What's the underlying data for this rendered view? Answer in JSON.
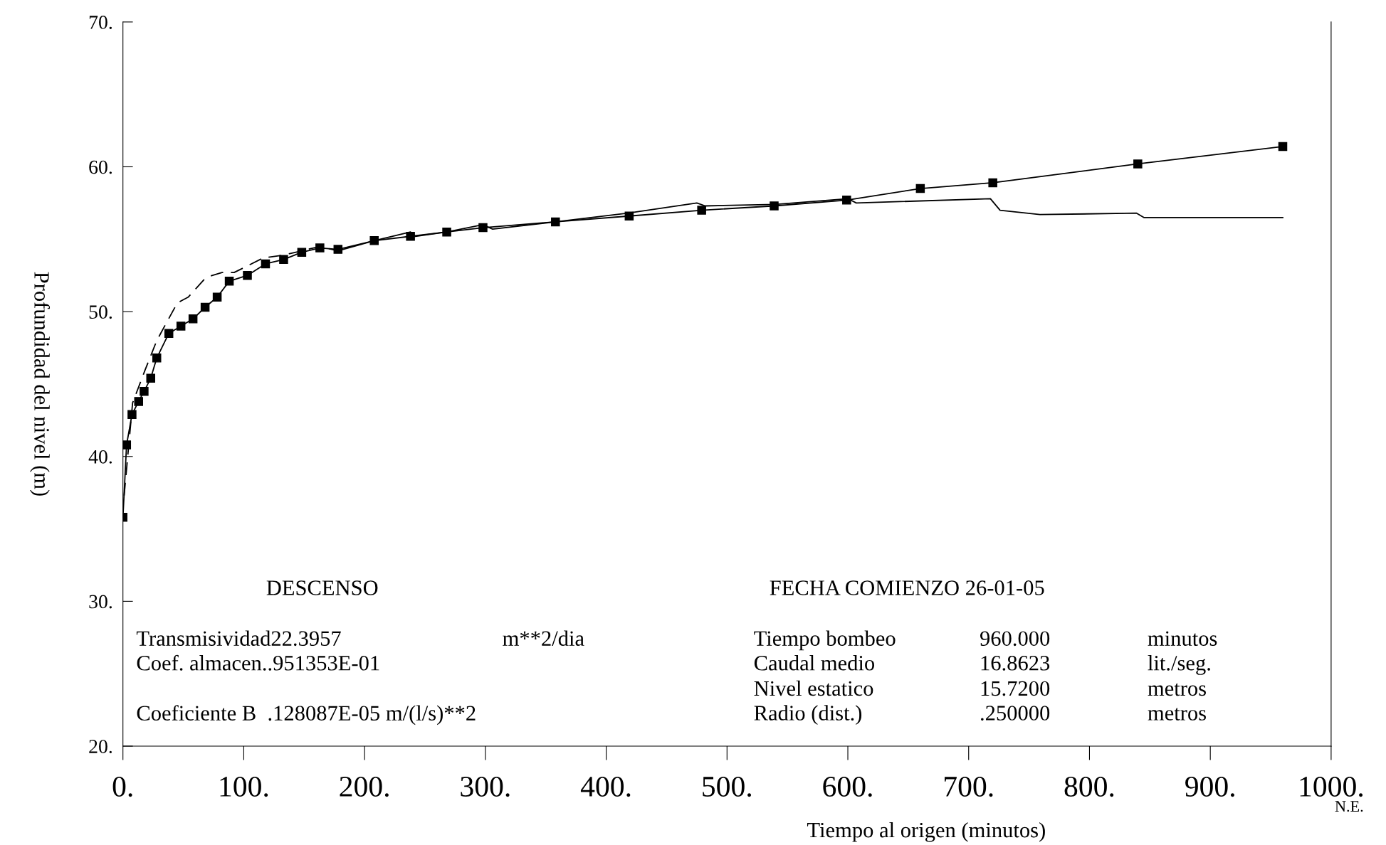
{
  "chart_data": {
    "type": "line",
    "xlabel": "Tiempo al origen (minutos)",
    "ylabel": "Profundidad del nivel (m)",
    "xlim": [
      0,
      1000
    ],
    "ylim": [
      20,
      70
    ],
    "xticks": [
      {
        "value": 0,
        "label": "0."
      },
      {
        "value": 100,
        "label": "100."
      },
      {
        "value": 200,
        "label": "200."
      },
      {
        "value": 300,
        "label": "300."
      },
      {
        "value": 400,
        "label": "400."
      },
      {
        "value": 500,
        "label": "500."
      },
      {
        "value": 600,
        "label": "600."
      },
      {
        "value": 700,
        "label": "700."
      },
      {
        "value": 800,
        "label": "800."
      },
      {
        "value": 900,
        "label": "900."
      },
      {
        "value": 1000,
        "label": "1000."
      }
    ],
    "yticks": [
      {
        "value": 20,
        "label": "20."
      },
      {
        "value": 30,
        "label": "30."
      },
      {
        "value": 40,
        "label": "40."
      },
      {
        "value": 50,
        "label": "50."
      },
      {
        "value": 60,
        "label": "60."
      },
      {
        "value": 70,
        "label": "70."
      }
    ],
    "grid": false,
    "legend": false,
    "series": [
      {
        "color": "#000000",
        "marker": "square",
        "line_style": "solid",
        "x": [
          0,
          3,
          7.5,
          13,
          17.5,
          23,
          28,
          38,
          48,
          58,
          68,
          78,
          88,
          103,
          118,
          133,
          148,
          163,
          178,
          208,
          238,
          268,
          298,
          358,
          419,
          479,
          539,
          599,
          660,
          720,
          840,
          960
        ],
        "values": [
          35.8,
          40.8,
          42.9,
          43.8,
          44.5,
          45.4,
          46.8,
          48.5,
          49.0,
          49.5,
          50.3,
          51.0,
          52.1,
          52.5,
          53.3,
          53.6,
          54.1,
          54.4,
          54.3,
          54.9,
          55.2,
          55.5,
          55.8,
          56.2,
          56.6,
          57.0,
          57.3,
          57.7,
          58.5,
          58.9,
          60.2,
          61.4
        ]
      },
      {
        "color": "#000000",
        "marker": "none",
        "line_style": "dashed",
        "x": [
          1,
          8,
          18,
          28,
          45,
          54,
          67,
          70,
          82,
          92,
          116,
          133,
          148,
          163,
          178
        ],
        "values": [
          37.3,
          43.7,
          45.9,
          48.0,
          50.6,
          51.0,
          52.2,
          52.4,
          52.7,
          52.7,
          53.7,
          53.9,
          54.2,
          54.5,
          54.2
        ]
      },
      {
        "color": "#000000",
        "marker": "none",
        "line_style": "solid",
        "x": [
          178,
          208,
          238,
          242,
          268,
          298,
          306,
          358,
          418,
          475,
          482,
          540,
          600,
          607,
          718,
          726,
          759,
          839,
          845,
          960
        ],
        "values": [
          54.2,
          54.9,
          55.5,
          55.2,
          55.5,
          56.0,
          55.7,
          56.2,
          56.8,
          57.5,
          57.3,
          57.4,
          57.8,
          57.5,
          57.8,
          57.0,
          56.7,
          56.8,
          56.5,
          56.5
        ]
      }
    ],
    "annotations": [
      "DESCENSO",
      "FECHA COMIENZO 26-01-05",
      "Transmisividad22.3957",
      "m**2/dia",
      "Coef. almacen..951353E-01",
      "Coeficiente B  .128087E-05 m/(l/s)**2",
      "Tiempo bombeo",
      "960.000",
      "minutos",
      "Caudal medio",
      "16.8623",
      "lit./seg.",
      "Nivel estatico",
      "15.7200",
      "metros",
      "Radio (dist.)",
      ".250000",
      "metros",
      "N.E."
    ]
  }
}
